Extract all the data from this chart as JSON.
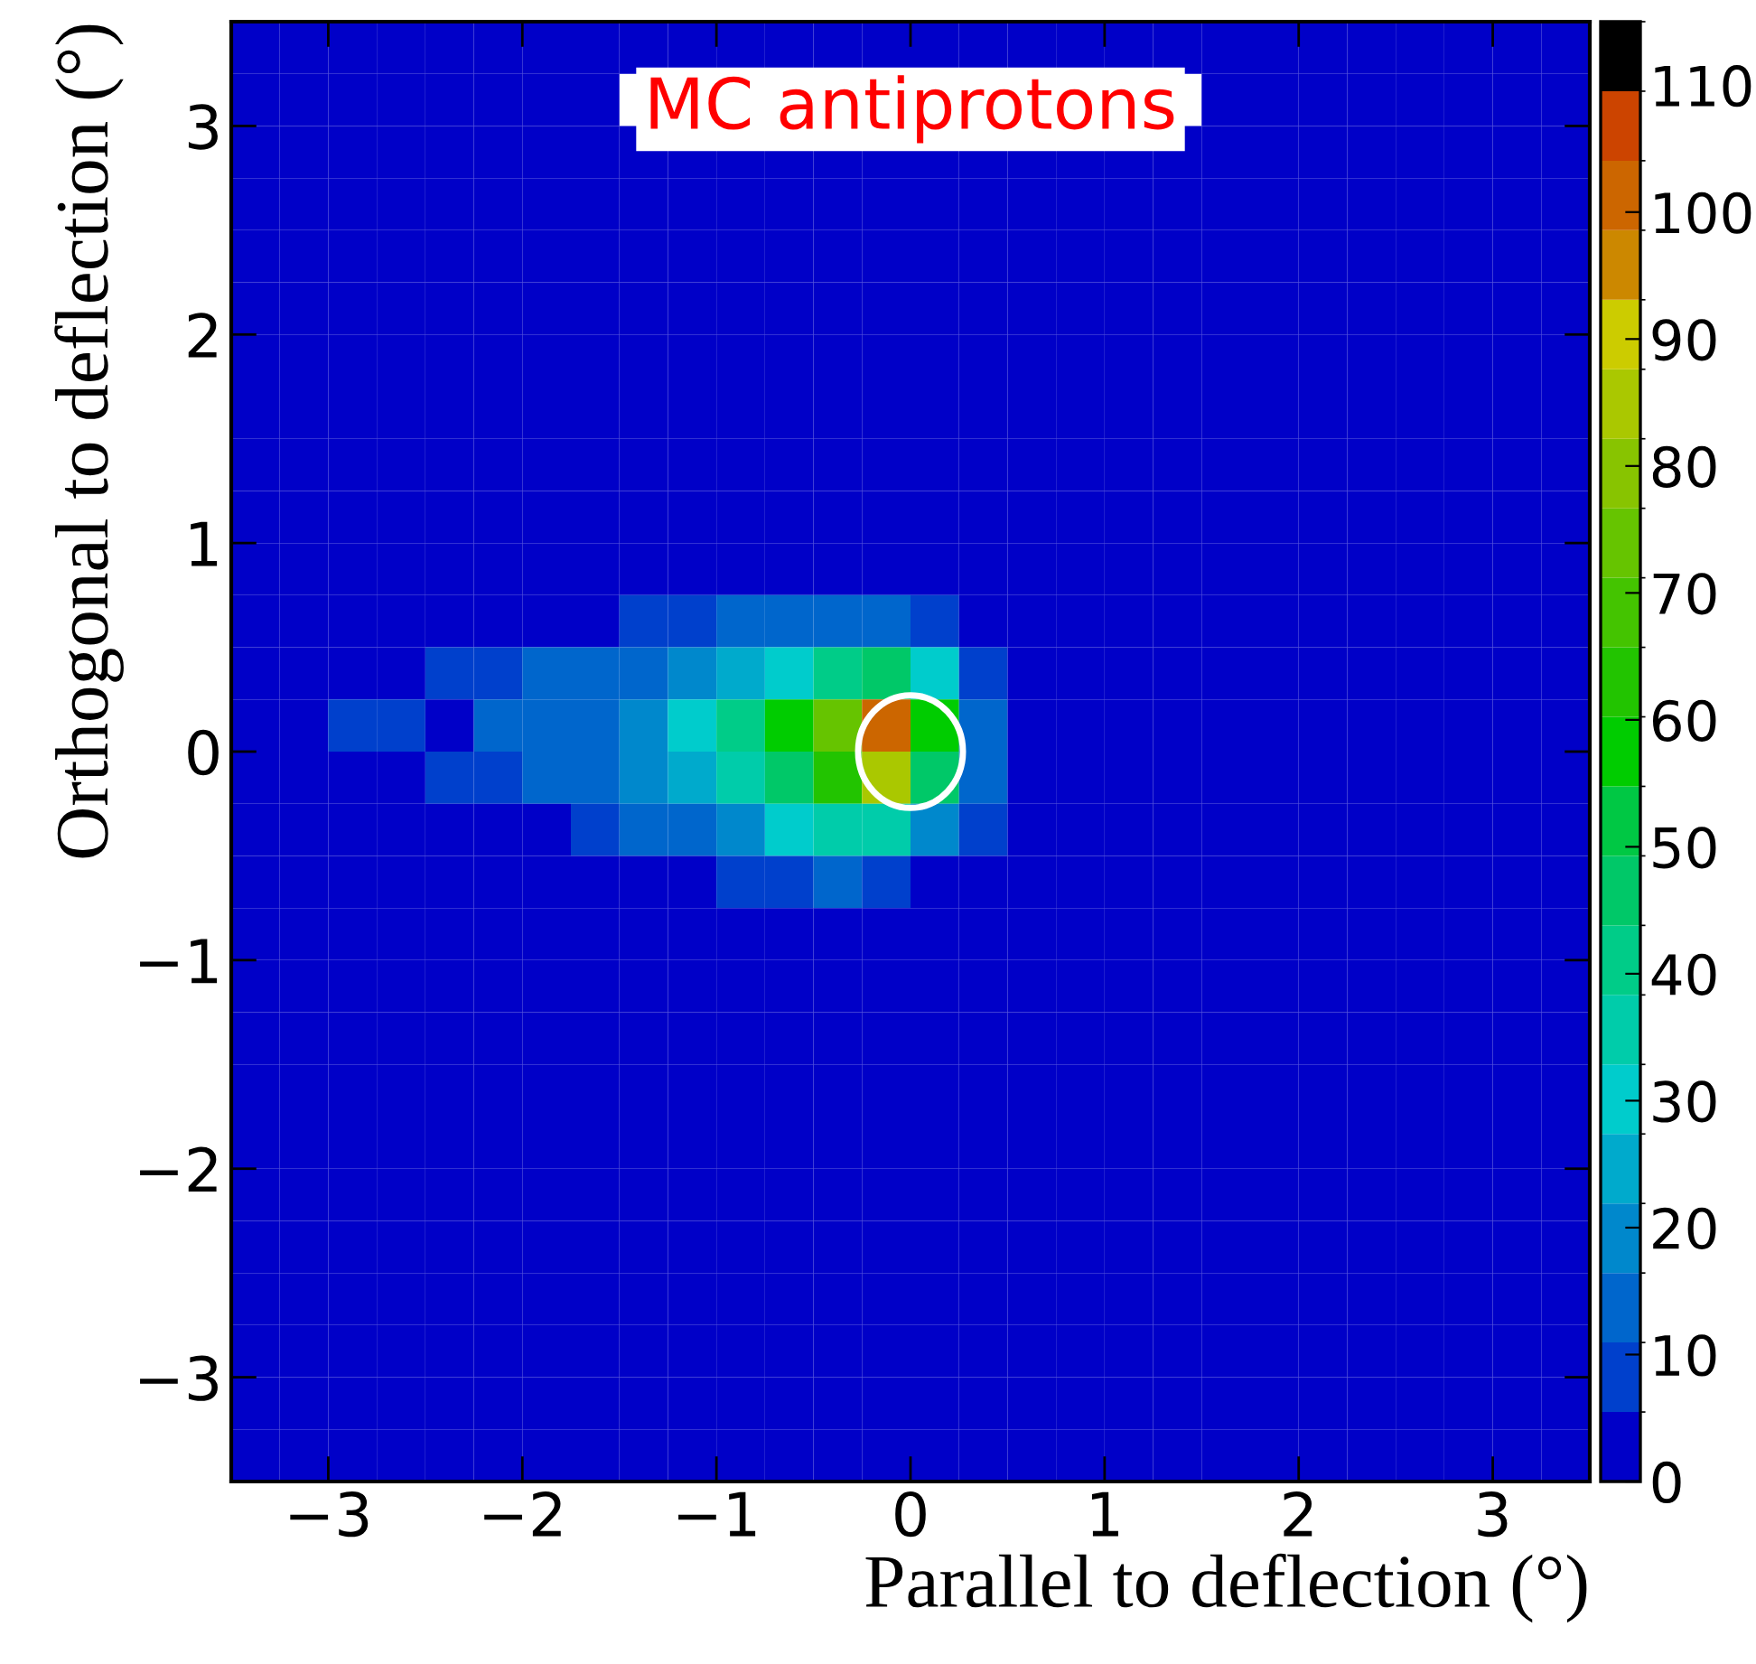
{
  "chart_data": {
    "type": "heatmap",
    "xlabel": "Parallel to deflection (°)",
    "ylabel": "Orthogonal to deflection (°)",
    "annotations": [
      "MC antiprotons"
    ],
    "xlim": [
      -3.5,
      3.5
    ],
    "ylim": [
      -3.5,
      3.5
    ],
    "xticks": [
      {
        "value": -3,
        "label": "−3"
      },
      {
        "value": -2,
        "label": "−2"
      },
      {
        "value": -1,
        "label": "−1"
      },
      0,
      1,
      2,
      3
    ],
    "yticks": [
      {
        "value": -3,
        "label": "−3"
      },
      {
        "value": -2,
        "label": "−2"
      },
      {
        "value": -1,
        "label": "−1"
      },
      0,
      1,
      2,
      3
    ],
    "clim": [
      0,
      115
    ],
    "cticks": [
      0,
      10,
      20,
      30,
      40,
      50,
      60,
      70,
      80,
      90,
      100,
      110
    ],
    "x": [
      -3.375,
      -3.125,
      -2.875,
      -2.625,
      -2.375,
      -2.125,
      -1.875,
      -1.625,
      -1.375,
      -1.125,
      -0.875,
      -0.625,
      -0.375,
      -0.125,
      0.125,
      0.375,
      0.625,
      0.875,
      1.125,
      1.375,
      1.625,
      1.875,
      2.125,
      2.375,
      2.625,
      2.875,
      3.125,
      3.375
    ],
    "y": [
      3.375,
      3.125,
      2.875,
      2.625,
      2.375,
      2.125,
      1.875,
      1.625,
      1.375,
      1.125,
      0.875,
      0.625,
      0.375,
      0.125,
      -0.125,
      -0.375,
      -0.625,
      -0.875,
      -1.125,
      -1.375,
      -1.625,
      -1.875,
      -2.125,
      -2.375,
      -2.625,
      -2.875,
      -3.125,
      -3.375
    ],
    "cells": [
      [
        0,
        0,
        0,
        0,
        0,
        0,
        0,
        0,
        0,
        0,
        0,
        0,
        0,
        0,
        0,
        0,
        0,
        0,
        0,
        0,
        0,
        0,
        0,
        0,
        0,
        0,
        0,
        0
      ],
      [
        0,
        0,
        0,
        0,
        0,
        0,
        0,
        0,
        null,
        null,
        null,
        null,
        null,
        null,
        null,
        null,
        null,
        null,
        null,
        null,
        0,
        0,
        0,
        0,
        0,
        0,
        0,
        0
      ],
      [
        0,
        0,
        0,
        0,
        0,
        0,
        0,
        0,
        0,
        0,
        0,
        0,
        0,
        0,
        0,
        0,
        0,
        0,
        0,
        0,
        0,
        0,
        0,
        0,
        0,
        0,
        0,
        0
      ],
      [
        0,
        0,
        0,
        0,
        0,
        0,
        0,
        0,
        0,
        0,
        0,
        0,
        0,
        0,
        0,
        0,
        0,
        0,
        0,
        0,
        0,
        0,
        0,
        0,
        0,
        0,
        0,
        0
      ],
      [
        0,
        0,
        0,
        0,
        0,
        0,
        0,
        0,
        0,
        0,
        0,
        0,
        0,
        0,
        0,
        0,
        0,
        0,
        0,
        0,
        0,
        0,
        0,
        0,
        0,
        0,
        0,
        0
      ],
      [
        0,
        0,
        0,
        0,
        0,
        0,
        0,
        0,
        0,
        0,
        0,
        0,
        0,
        0,
        0,
        0,
        0,
        0,
        0,
        0,
        0,
        0,
        0,
        0,
        0,
        0,
        0,
        0
      ],
      [
        0,
        0,
        0,
        0,
        0,
        0,
        0,
        0,
        0,
        0,
        0,
        0,
        0,
        0,
        0,
        0,
        0,
        0,
        0,
        0,
        0,
        0,
        0,
        0,
        0,
        0,
        0,
        0
      ],
      [
        0,
        0,
        0,
        0,
        0,
        0,
        0,
        0,
        0,
        0,
        0,
        0,
        0,
        0,
        0,
        0,
        0,
        0,
        0,
        0,
        0,
        0,
        0,
        0,
        0,
        0,
        0,
        0
      ],
      [
        0,
        0,
        0,
        0,
        0,
        0,
        0,
        0,
        0,
        0,
        0,
        0,
        0,
        0,
        0,
        0,
        0,
        0,
        0,
        0,
        0,
        0,
        0,
        0,
        0,
        0,
        0,
        0
      ],
      [
        0,
        0,
        0,
        0,
        0,
        0,
        0,
        0,
        0,
        0,
        0,
        0,
        0,
        0,
        0,
        0,
        0,
        0,
        0,
        0,
        0,
        0,
        0,
        0,
        0,
        0,
        0,
        0
      ],
      [
        0,
        0,
        0,
        0,
        0,
        0,
        0,
        0,
        0,
        0,
        0,
        0,
        0,
        0,
        0,
        0,
        0,
        0,
        0,
        0,
        0,
        0,
        0,
        0,
        0,
        0,
        0,
        0
      ],
      [
        0,
        0,
        0,
        0,
        0,
        0,
        3,
        5,
        8,
        10,
        11,
        12,
        14,
        12,
        8,
        0,
        0,
        0,
        0,
        0,
        0,
        0,
        0,
        0,
        0,
        0,
        0,
        0
      ],
      [
        0,
        0,
        0,
        3,
        8,
        10,
        12,
        12,
        15,
        20,
        25,
        30,
        40,
        45,
        30,
        10,
        0,
        0,
        0,
        0,
        0,
        0,
        0,
        0,
        0,
        0,
        0,
        0
      ],
      [
        0,
        0,
        6,
        10,
        5,
        12,
        14,
        16,
        20,
        30,
        40,
        55,
        75,
        102,
        55,
        15,
        0,
        0,
        0,
        0,
        0,
        0,
        0,
        0,
        0,
        0,
        0,
        0
      ],
      [
        0,
        0,
        0,
        4,
        8,
        10,
        12,
        14,
        18,
        25,
        33,
        45,
        65,
        85,
        45,
        12,
        0,
        0,
        0,
        0,
        0,
        0,
        0,
        0,
        0,
        0,
        0,
        0
      ],
      [
        0,
        0,
        0,
        0,
        0,
        0,
        5,
        9,
        12,
        15,
        20,
        28,
        38,
        35,
        20,
        6,
        0,
        0,
        0,
        0,
        0,
        0,
        0,
        0,
        0,
        0,
        0,
        0
      ],
      [
        0,
        0,
        0,
        0,
        0,
        0,
        0,
        0,
        0,
        5,
        8,
        10,
        12,
        10,
        5,
        0,
        0,
        0,
        0,
        0,
        0,
        0,
        0,
        0,
        0,
        0,
        0,
        0
      ],
      [
        0,
        0,
        0,
        0,
        0,
        0,
        0,
        0,
        0,
        0,
        0,
        0,
        0,
        0,
        0,
        0,
        0,
        0,
        0,
        0,
        0,
        0,
        0,
        0,
        0,
        0,
        0,
        0
      ],
      [
        0,
        0,
        0,
        0,
        0,
        0,
        0,
        0,
        0,
        0,
        0,
        0,
        0,
        0,
        0,
        0,
        0,
        0,
        0,
        0,
        0,
        0,
        0,
        0,
        0,
        0,
        0,
        0
      ],
      [
        0,
        0,
        0,
        0,
        0,
        0,
        0,
        0,
        0,
        0,
        0,
        0,
        0,
        0,
        0,
        0,
        0,
        0,
        0,
        0,
        0,
        0,
        0,
        0,
        0,
        0,
        0,
        0
      ],
      [
        0,
        0,
        0,
        0,
        0,
        0,
        0,
        0,
        0,
        0,
        0,
        0,
        0,
        0,
        0,
        0,
        0,
        0,
        0,
        0,
        0,
        0,
        0,
        0,
        0,
        0,
        0,
        0
      ],
      [
        0,
        0,
        0,
        0,
        0,
        0,
        0,
        0,
        0,
        0,
        0,
        0,
        0,
        0,
        0,
        0,
        0,
        0,
        0,
        0,
        0,
        0,
        0,
        0,
        0,
        0,
        0,
        0
      ],
      [
        0,
        0,
        0,
        0,
        0,
        0,
        0,
        0,
        0,
        0,
        0,
        0,
        0,
        0,
        0,
        0,
        0,
        0,
        0,
        0,
        0,
        0,
        0,
        0,
        0,
        0,
        0,
        0
      ],
      [
        0,
        0,
        0,
        0,
        0,
        0,
        0,
        0,
        0,
        0,
        0,
        0,
        0,
        0,
        0,
        0,
        0,
        0,
        0,
        0,
        0,
        0,
        0,
        0,
        0,
        0,
        0,
        0
      ],
      [
        0,
        0,
        0,
        0,
        0,
        0,
        0,
        0,
        0,
        0,
        0,
        0,
        0,
        0,
        0,
        0,
        0,
        0,
        0,
        0,
        0,
        0,
        0,
        0,
        0,
        0,
        0,
        0
      ],
      [
        0,
        0,
        0,
        0,
        0,
        0,
        0,
        0,
        0,
        0,
        0,
        0,
        0,
        0,
        0,
        0,
        0,
        0,
        0,
        0,
        0,
        0,
        0,
        0,
        0,
        0,
        0,
        0
      ],
      [
        0,
        0,
        0,
        0,
        0,
        0,
        0,
        0,
        0,
        0,
        0,
        0,
        0,
        0,
        0,
        0,
        0,
        0,
        0,
        0,
        0,
        0,
        0,
        0,
        0,
        0,
        0,
        0
      ],
      [
        0,
        0,
        0,
        0,
        0,
        0,
        0,
        0,
        0,
        0,
        0,
        0,
        0,
        0,
        0,
        0,
        0,
        0,
        0,
        0,
        0,
        0,
        0,
        0,
        0,
        0,
        0,
        0
      ]
    ]
  }
}
